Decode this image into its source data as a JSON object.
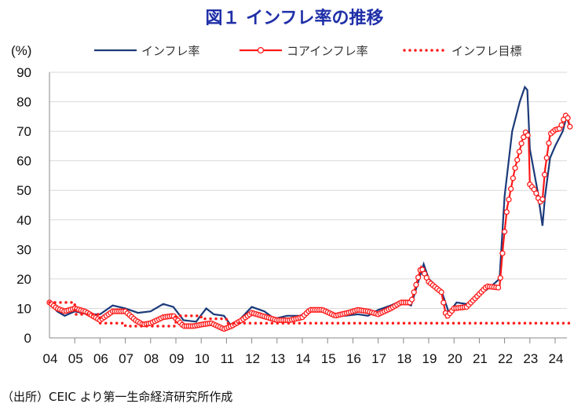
{
  "chart_data": {
    "type": "line",
    "title": "図１ インフレ率の推移",
    "ylabel": "(%)",
    "xlabel": "",
    "source": "（出所）CEIC より第一生命経済研究所作成",
    "ylim": [
      0,
      90
    ],
    "yticks": [
      0,
      10,
      20,
      30,
      40,
      50,
      60,
      70,
      80,
      90
    ],
    "xlim": [
      2004,
      2024.6
    ],
    "xticks": [
      "04",
      "05",
      "06",
      "07",
      "08",
      "09",
      "10",
      "11",
      "12",
      "13",
      "14",
      "15",
      "16",
      "17",
      "18",
      "19",
      "20",
      "21",
      "22",
      "23",
      "24"
    ],
    "grid": true,
    "legend_position": "top",
    "series": [
      {
        "name": "インフレ率",
        "color": "#1b3a7a",
        "style": "line",
        "x": [
          2004.0,
          2004.3,
          2004.6,
          2005.0,
          2005.5,
          2006.0,
          2006.5,
          2007.0,
          2007.5,
          2008.0,
          2008.5,
          2008.9,
          2009.3,
          2009.8,
          2010.2,
          2010.5,
          2010.9,
          2011.2,
          2011.5,
          2012.0,
          2012.5,
          2012.9,
          2013.4,
          2013.9,
          2014.3,
          2014.8,
          2015.2,
          2015.7,
          2016.2,
          2016.6,
          2017.0,
          2017.5,
          2017.9,
          2018.3,
          2018.8,
          2019.0,
          2019.5,
          2019.8,
          2020.1,
          2020.5,
          2020.9,
          2021.4,
          2021.8,
          2022.0,
          2022.3,
          2022.6,
          2022.8,
          2022.9,
          2023.0,
          2023.3,
          2023.5,
          2023.6,
          2023.8,
          2024.0,
          2024.3,
          2024.45,
          2024.6
        ],
        "y": [
          12,
          9,
          7.5,
          9,
          8,
          8,
          11,
          10,
          8.5,
          9,
          11.5,
          10.5,
          6,
          5.5,
          10,
          8,
          7.5,
          4,
          6,
          10.5,
          9,
          6.5,
          7.5,
          7.5,
          9,
          9,
          7.5,
          7.5,
          8,
          7.5,
          9.5,
          11,
          12.5,
          11,
          25,
          20,
          16,
          8.5,
          12,
          11.5,
          14,
          17,
          20,
          48,
          70,
          80,
          85,
          84,
          64,
          50,
          38,
          48,
          61,
          65,
          70,
          75,
          71
        ]
      },
      {
        "name": "コアインフレ率",
        "color": "#ff1a1a",
        "style": "line-marker",
        "x": [
          2004.0,
          2004.3,
          2004.6,
          2005.0,
          2005.4,
          2005.7,
          2006.0,
          2006.5,
          2007.0,
          2007.4,
          2007.7,
          2008.0,
          2008.5,
          2008.9,
          2009.3,
          2009.7,
          2010.0,
          2010.4,
          2010.9,
          2011.2,
          2011.6,
          2012.0,
          2012.6,
          2013.0,
          2013.5,
          2014.0,
          2014.3,
          2014.8,
          2015.3,
          2015.8,
          2016.2,
          2016.6,
          2017.0,
          2017.5,
          2017.9,
          2018.3,
          2018.7,
          2019.0,
          2019.5,
          2019.7,
          2020.0,
          2020.5,
          2020.9,
          2021.3,
          2021.8,
          2021.95,
          2022.1,
          2022.4,
          2022.7,
          2022.85,
          2022.95,
          2023.0,
          2023.2,
          2023.4,
          2023.5,
          2023.6,
          2023.8,
          2024.0,
          2024.2,
          2024.4,
          2024.5,
          2024.6
        ],
        "y": [
          12,
          10,
          9,
          10,
          9,
          7.5,
          6,
          9,
          9,
          6,
          4.5,
          5,
          7,
          7.5,
          4,
          4,
          4.5,
          5,
          3,
          4,
          6,
          8.5,
          7,
          6,
          6,
          7,
          9.5,
          9.5,
          7.5,
          8.5,
          9.5,
          9,
          8,
          10,
          12,
          12,
          24,
          19,
          15.5,
          7,
          10,
          10.5,
          14,
          17.5,
          17,
          32,
          44,
          57,
          67,
          70,
          68,
          52,
          50,
          46,
          47,
          57,
          69,
          70.5,
          71,
          75.5,
          74.5,
          71
        ]
      },
      {
        "name": "インフレ目標",
        "color": "#ff1a1a",
        "style": "dotted",
        "x": [
          2004.0,
          2005.0,
          2005.0,
          2006.0,
          2006.0,
          2007.0,
          2007.0,
          2009.0,
          2009.0,
          2010.0,
          2010.0,
          2011.0,
          2011.0,
          2024.6
        ],
        "y": [
          12,
          12,
          8,
          8,
          5,
          5,
          4,
          4,
          7.5,
          7.5,
          6.5,
          6.5,
          5,
          5
        ]
      }
    ]
  }
}
